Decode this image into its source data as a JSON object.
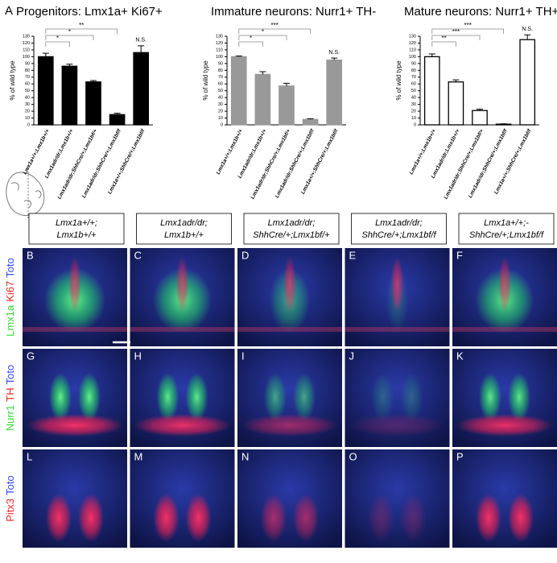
{
  "panel_label": "A",
  "chart_data": [
    {
      "type": "bar",
      "title": "Progenitors: Lmx1a+ Ki67+",
      "ylabel": "% of wild type",
      "categories": [
        "Lmx1a+/+;Lmx1b+/+",
        "Lmx1adr/dr;Lmx1b+/+",
        "Lmx1adr/dr;ShhCre/+;Lmx1bf/+",
        "Lmx1adr/dr;ShhCre/+;Lmx1bf/f",
        "Lmx1a+/+;ShhCre/+;Lmx1bf/f"
      ],
      "values": [
        100,
        86,
        63,
        15,
        106
      ],
      "errors": [
        5,
        3,
        2,
        2,
        10
      ],
      "color": "#000000",
      "edge_color": "#000000",
      "ylim": [
        0,
        130
      ],
      "yticks": [
        0,
        10,
        20,
        30,
        40,
        50,
        60,
        70,
        80,
        90,
        100,
        110,
        120,
        130
      ],
      "comparisons": [
        {
          "from": 0,
          "to": 1,
          "label": "*"
        },
        {
          "from": 0,
          "to": 2,
          "label": "*"
        },
        {
          "from": 0,
          "to": 3,
          "label": "**"
        }
      ],
      "annotations": [
        {
          "category": 4,
          "label": "N.S."
        }
      ]
    },
    {
      "type": "bar",
      "title": "Immature neurons: Nurr1+ TH-",
      "ylabel": "% of wild type",
      "categories": [
        "Lmx1a+/+;Lmx1b+/+",
        "Lmx1adr/dr;Lmx1b+/+",
        "Lmx1adr/dr;ShhCre/+;Lmx1bf/+",
        "Lmx1adr/dr;ShhCre/+;Lmx1bf/f",
        "Lmx1a+/+;ShhCre/+;Lmx1bf/f"
      ],
      "values": [
        100,
        74,
        57,
        8,
        95
      ],
      "errors": [
        1,
        4,
        4,
        1,
        3
      ],
      "color": "#999999",
      "edge_color": "#999999",
      "ylim": [
        0,
        130
      ],
      "yticks": [
        0,
        10,
        20,
        30,
        40,
        50,
        60,
        70,
        80,
        90,
        100,
        110,
        120,
        130
      ],
      "comparisons": [
        {
          "from": 0,
          "to": 1,
          "label": "*"
        },
        {
          "from": 0,
          "to": 2,
          "label": "*"
        },
        {
          "from": 0,
          "to": 3,
          "label": "***"
        }
      ],
      "annotations": [
        {
          "category": 4,
          "label": "N.S."
        }
      ]
    },
    {
      "type": "bar",
      "title": "Mature neurons: Nurr1+ TH+",
      "ylabel": "% of wild type",
      "categories": [
        "Lmx1a+/+;Lmx1b+/+",
        "Lmx1adr/dr;Lmx1b+/+",
        "Lmx1adr/dr;ShhCre/+;Lmx1bf/+",
        "Lmx1adr/dr;ShhCre/+;Lmx1bf/f",
        "Lmx1a+/+;ShhCre/+;Lmx1bf/f"
      ],
      "values": [
        100,
        63,
        21,
        1,
        125
      ],
      "errors": [
        4,
        3,
        2,
        0.5,
        7
      ],
      "color": "#ffffff",
      "edge_color": "#000000",
      "ylim": [
        0,
        130
      ],
      "yticks": [
        0,
        10,
        20,
        30,
        40,
        50,
        60,
        70,
        80,
        90,
        100,
        110,
        120,
        130
      ],
      "comparisons": [
        {
          "from": 0,
          "to": 1,
          "label": "**"
        },
        {
          "from": 0,
          "to": 2,
          "label": "***"
        },
        {
          "from": 0,
          "to": 3,
          "label": "***"
        }
      ],
      "annotations": [
        {
          "category": 4,
          "label": "N.S."
        }
      ]
    }
  ],
  "image_grid": {
    "columns": [
      [
        "Lmx1a+/+;",
        "Lmx1b+/+"
      ],
      [
        "Lmx1adr/dr;",
        "Lmx1b+/+"
      ],
      [
        "Lmx1adr/dr;",
        "ShhCre/+;Lmx1bf/+"
      ],
      [
        "Lmx1adr/dr;",
        "ShhCre/+;Lmx1bf/f"
      ],
      [
        "Lmx1a+/+;-",
        "ShhCre/+;Lmx1bf/f"
      ]
    ],
    "rows": [
      {
        "stains": [
          {
            "text": "Lmx1a",
            "color": "#33dd33"
          },
          {
            "text": "Ki67",
            "color": "#ee2222"
          },
          {
            "text": "Toto",
            "color": "#3344ff"
          }
        ],
        "panels": [
          "B",
          "C",
          "D",
          "E",
          "F"
        ]
      },
      {
        "stains": [
          {
            "text": "Nurr1",
            "color": "#33dd33"
          },
          {
            "text": "TH",
            "color": "#ee2222"
          },
          {
            "text": "Toto",
            "color": "#3344ff"
          }
        ],
        "panels": [
          "G",
          "H",
          "I",
          "J",
          "K"
        ]
      },
      {
        "stains": [
          {
            "text": "Pitx3",
            "color": "#ee2222"
          },
          {
            "text": "Toto",
            "color": "#3344ff"
          }
        ],
        "panels": [
          "L",
          "M",
          "N",
          "O",
          "P"
        ]
      }
    ]
  }
}
